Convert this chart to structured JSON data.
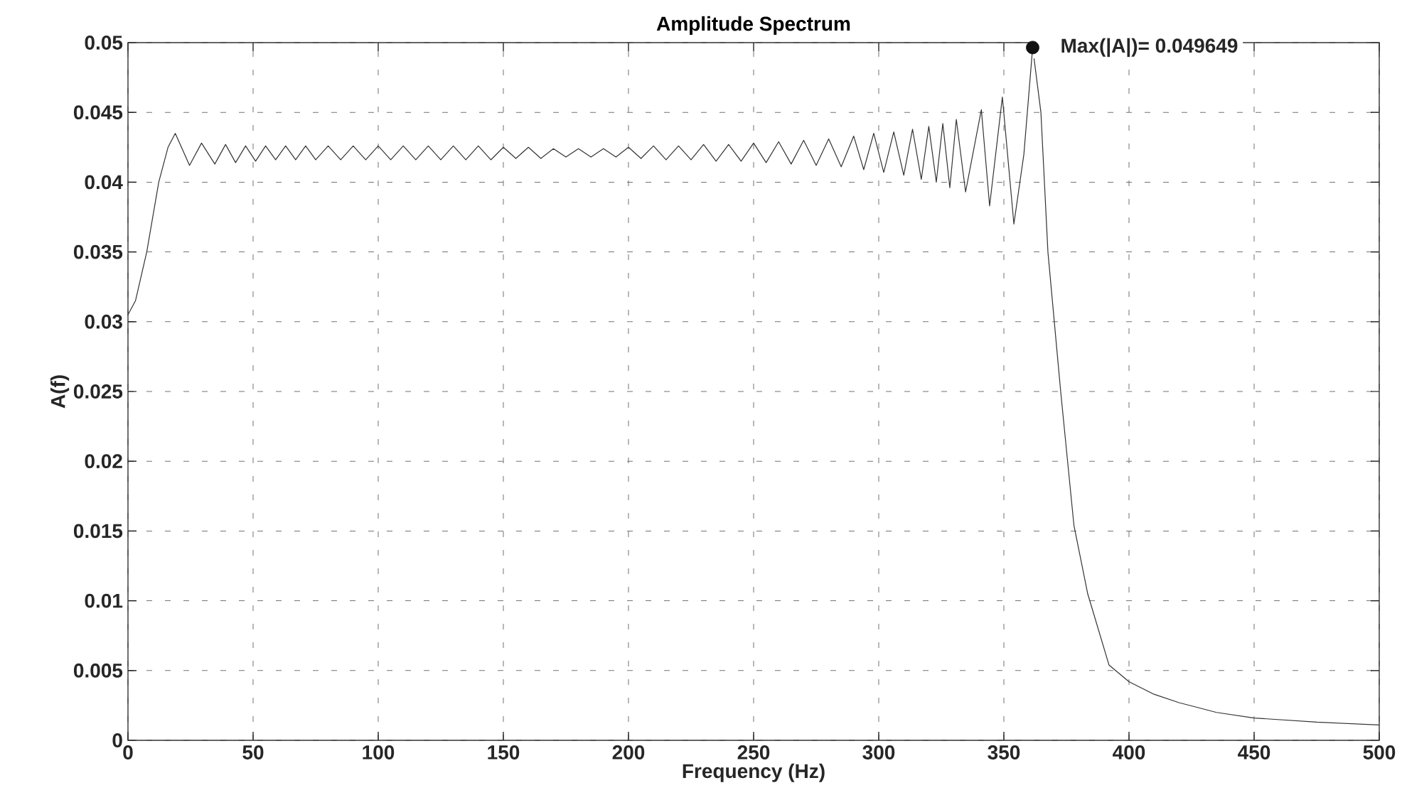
{
  "chart_data": {
    "type": "line",
    "title": "Amplitude Spectrum",
    "xlabel": "Frequency (Hz)",
    "ylabel": "A(f)",
    "xlim": [
      0,
      500
    ],
    "ylim": [
      0,
      0.05
    ],
    "xticks": [
      0,
      50,
      100,
      150,
      200,
      250,
      300,
      350,
      400,
      450,
      500
    ],
    "yticks": [
      0,
      0.005,
      0.01,
      0.015,
      0.02,
      0.025,
      0.03,
      0.035,
      0.04,
      0.045,
      0.05
    ],
    "grid": true,
    "annotations": [
      {
        "text": "Max(|A|)= 0.049649",
        "x": 361.5,
        "y": 0.049649
      }
    ],
    "series": [
      {
        "color": "#333333",
        "marker": "none",
        "x": [
          0,
          3,
          7.5,
          12.3,
          16,
          18.9,
          24.6,
          29.4,
          34.7,
          39,
          43,
          47,
          51,
          55,
          59,
          63,
          67,
          71,
          75,
          80,
          85,
          90,
          95,
          100,
          105,
          110,
          115,
          120,
          125,
          130,
          135,
          140,
          145,
          150,
          155,
          160,
          165,
          170,
          175,
          180,
          185,
          190,
          195,
          200,
          205,
          210,
          215,
          220,
          225,
          230,
          235,
          240,
          245,
          250,
          255,
          260,
          265,
          270,
          275,
          280,
          285,
          290,
          294,
          298,
          302,
          306,
          310,
          313.5,
          317,
          320,
          323,
          325.6,
          328.4,
          331,
          334.7,
          341,
          344.3,
          349.4,
          354,
          358,
          361.5,
          364.8,
          367.6,
          372.7,
          378,
          383.5,
          392,
          400,
          410,
          420,
          435,
          450,
          475,
          500
        ],
        "values": [
          0.0305,
          0.0315,
          0.035,
          0.04,
          0.0425,
          0.0435,
          0.0412,
          0.0428,
          0.0413,
          0.0427,
          0.0414,
          0.0426,
          0.0415,
          0.0426,
          0.0416,
          0.0426,
          0.0416,
          0.0426,
          0.0416,
          0.0426,
          0.0416,
          0.0426,
          0.0416,
          0.0426,
          0.0416,
          0.0426,
          0.0416,
          0.0426,
          0.0416,
          0.0426,
          0.0416,
          0.0426,
          0.0416,
          0.0425,
          0.0417,
          0.0425,
          0.0417,
          0.0424,
          0.0418,
          0.0424,
          0.0418,
          0.0424,
          0.0418,
          0.0425,
          0.0417,
          0.0426,
          0.0416,
          0.0426,
          0.0416,
          0.0427,
          0.0415,
          0.0427,
          0.0415,
          0.0428,
          0.0414,
          0.0429,
          0.0413,
          0.043,
          0.0412,
          0.0431,
          0.0411,
          0.0433,
          0.0409,
          0.0435,
          0.0407,
          0.0436,
          0.0405,
          0.0438,
          0.0402,
          0.044,
          0.04,
          0.0442,
          0.0396,
          0.0445,
          0.0393,
          0.0452,
          0.0383,
          0.0461,
          0.037,
          0.042,
          0.049649,
          0.045,
          0.035,
          0.025,
          0.0154,
          0.0105,
          0.0054,
          0.0042,
          0.0033,
          0.0027,
          0.002,
          0.0016,
          0.0013,
          0.0011
        ]
      },
      {
        "type": "scatter",
        "color": "#111111",
        "marker": "circle",
        "x": [
          361.5
        ],
        "values": [
          0.049649
        ]
      }
    ]
  }
}
